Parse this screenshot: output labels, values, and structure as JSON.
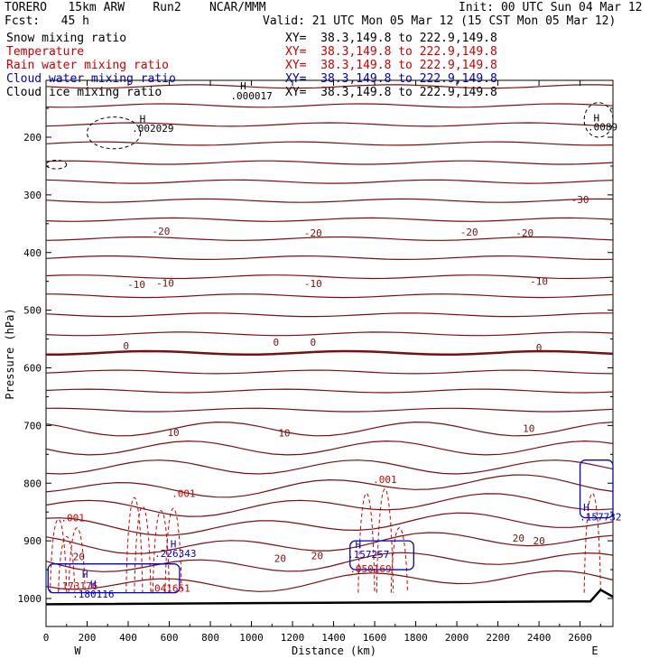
{
  "header": {
    "model": "TORERO   15km ARW    Run2    NCAR/MMM",
    "init": "Init: 00 UTC Sun 04 Mar 12",
    "fcst": "Fcst:   45 h",
    "valid": "Valid: 21 UTC Mon 05 Mar 12 (15 CST Mon 05 Mar 12)",
    "fields": [
      {
        "label": "Snow mixing ratio",
        "xy": "XY=  38.3,149.8 to 222.9,149.8",
        "color": "#000000"
      },
      {
        "label": "Temperature",
        "xy": "XY=  38.3,149.8 to 222.9,149.8",
        "color": "#cc0000"
      },
      {
        "label": "Rain water mixing ratio",
        "xy": "XY=  38.3,149.8 to 222.9,149.8",
        "color": "#cc0000"
      },
      {
        "label": "Cloud water mixing ratio",
        "xy": "XY=  38.3,149.8 to 222.9,149.8",
        "color": "#0000cc"
      },
      {
        "label": "Cloud ice mixing ratio",
        "xy": "XY=  38.3,149.8 to 222.9,149.8",
        "color": "#000000"
      }
    ]
  },
  "chart_data": {
    "type": "line",
    "xlabel": "Distance (km)",
    "ylabel": "Pressure (hPa)",
    "xlim": [
      0,
      2760
    ],
    "ylim": [
      1050,
      100
    ],
    "x_ticks": [
      0,
      200,
      400,
      600,
      800,
      1000,
      1200,
      1400,
      1600,
      1800,
      2000,
      2200,
      2400,
      2600
    ],
    "y_ticks": [
      200,
      300,
      400,
      500,
      600,
      700,
      800,
      900,
      1000
    ],
    "endpoint_labels": {
      "left": "W",
      "right": "E"
    },
    "temperature_contour_labels": [
      {
        "text": "-30",
        "x": 2600,
        "y": 308
      },
      {
        "text": "-20",
        "x": 560,
        "y": 363
      },
      {
        "text": "-20",
        "x": 1300,
        "y": 366
      },
      {
        "text": "-20",
        "x": 2060,
        "y": 364
      },
      {
        "text": "-20",
        "x": 2330,
        "y": 366
      },
      {
        "text": "-10",
        "x": 440,
        "y": 455
      },
      {
        "text": "-10",
        "x": 580,
        "y": 453
      },
      {
        "text": "-10",
        "x": 1300,
        "y": 454
      },
      {
        "text": "-10",
        "x": 2400,
        "y": 450
      },
      {
        "text": "0",
        "x": 390,
        "y": 562
      },
      {
        "text": "0",
        "x": 1120,
        "y": 555
      },
      {
        "text": "0",
        "x": 1300,
        "y": 555
      },
      {
        "text": "0",
        "x": 2400,
        "y": 565
      },
      {
        "text": "10",
        "x": 620,
        "y": 712
      },
      {
        "text": "10",
        "x": 1160,
        "y": 713
      },
      {
        "text": "10",
        "x": 2350,
        "y": 705
      },
      {
        "text": "20",
        "x": 160,
        "y": 927
      },
      {
        "text": "20",
        "x": 1140,
        "y": 930
      },
      {
        "text": "20",
        "x": 1320,
        "y": 926
      },
      {
        "text": "20",
        "x": 2300,
        "y": 895
      },
      {
        "text": "20",
        "x": 2400,
        "y": 900
      }
    ],
    "rain_labels": [
      {
        "text": ".001",
        "x": 130,
        "y": 860
      },
      {
        "text": ".001",
        "x": 670,
        "y": 818
      },
      {
        "text": ".001",
        "x": 1650,
        "y": 793
      },
      {
        "text": ".050169",
        "x": 1580,
        "y": 948
      },
      {
        "text": ".041651",
        "x": 600,
        "y": 982
      },
      {
        "text": ".173176",
        "x": 150,
        "y": 978
      }
    ],
    "cloud_water_labels": [
      {
        "text": "H",
        "x": 620,
        "y": 905,
        "color": "#0000cc"
      },
      {
        "text": ".226343",
        "x": 630,
        "y": 922,
        "color": "#0000cc"
      },
      {
        "text": "H",
        "x": 190,
        "y": 958,
        "color": "#0000cc"
      },
      {
        "text": "H",
        "x": 230,
        "y": 975,
        "color": "#0000cc"
      },
      {
        "text": ".180116",
        "x": 230,
        "y": 992,
        "color": "#0000cc"
      },
      {
        "text": "H",
        "x": 1520,
        "y": 906,
        "color": "#0000cc"
      },
      {
        "text": ".157257",
        "x": 1570,
        "y": 923,
        "color": "#0000cc"
      },
      {
        "text": "H",
        "x": 2630,
        "y": 842,
        "color": "#0000cc"
      },
      {
        "text": ".157732",
        "x": 2700,
        "y": 858,
        "color": "#0000cc"
      }
    ],
    "snow_ice_labels": [
      {
        "text": "H",
        "x": 470,
        "y": 168
      },
      {
        "text": ".002029",
        "x": 520,
        "y": 184
      },
      {
        "text": "H",
        "x": 960,
        "y": 111
      },
      {
        "text": ".000017",
        "x": 1000,
        "y": 128
      },
      {
        "text": "H",
        "x": 2680,
        "y": 166
      },
      {
        "text": ".0089",
        "x": 2710,
        "y": 182
      }
    ],
    "grid": false
  }
}
